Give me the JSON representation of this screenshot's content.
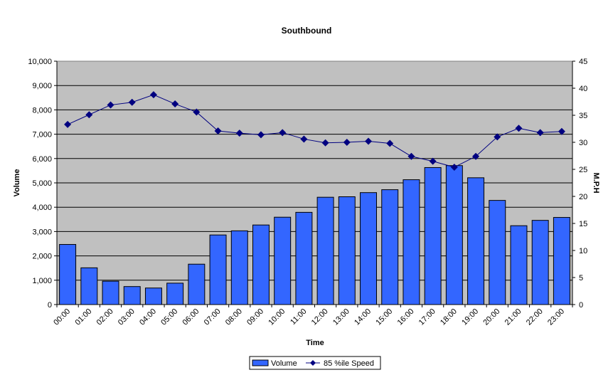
{
  "chart_data": {
    "type": "bar+line",
    "title": "Southbound",
    "xlabel": "Time",
    "ylabel": "Volume",
    "y2label": "M.P.H",
    "categories": [
      "00:00",
      "01:00",
      "02:00",
      "03:00",
      "04:00",
      "05:00",
      "06:00",
      "07:00",
      "08:00",
      "09:00",
      "10:00",
      "11:00",
      "12:00",
      "13:00",
      "14:00",
      "15:00",
      "16:00",
      "17:00",
      "18:00",
      "19:00",
      "20:00",
      "21:00",
      "22:00",
      "23:00"
    ],
    "ylim": [
      0,
      10000
    ],
    "y_ticks": [
      "0",
      "1,000",
      "2,000",
      "3,000",
      "4,000",
      "5,000",
      "6,000",
      "7,000",
      "8,000",
      "9,000",
      "10,000"
    ],
    "y2lim": [
      0,
      45
    ],
    "y2_ticks": [
      "0",
      "5",
      "10",
      "15",
      "20",
      "25",
      "30",
      "35",
      "40",
      "45"
    ],
    "grid": true,
    "legend_position": "bottom",
    "series": [
      {
        "name": "Volume",
        "kind": "bar",
        "axis": "left",
        "color": "#3366ff",
        "values": [
          2470,
          1510,
          960,
          740,
          680,
          880,
          1660,
          2860,
          3030,
          3270,
          3590,
          3790,
          4410,
          4430,
          4600,
          4720,
          5130,
          5630,
          5710,
          5210,
          4280,
          3240,
          3460,
          3580
        ]
      },
      {
        "name": "85 %ile Speed",
        "kind": "line",
        "axis": "right",
        "color": "#000080",
        "values": [
          33.3,
          35.1,
          36.9,
          37.4,
          38.8,
          37.1,
          35.6,
          32.1,
          31.7,
          31.4,
          31.8,
          30.6,
          29.9,
          30.0,
          30.2,
          29.8,
          27.4,
          26.5,
          25.4,
          27.4,
          31.0,
          32.6,
          31.8,
          32.0
        ]
      }
    ],
    "colors": {
      "plot_background": "#c0c0c0",
      "gridline": "#000000"
    }
  }
}
